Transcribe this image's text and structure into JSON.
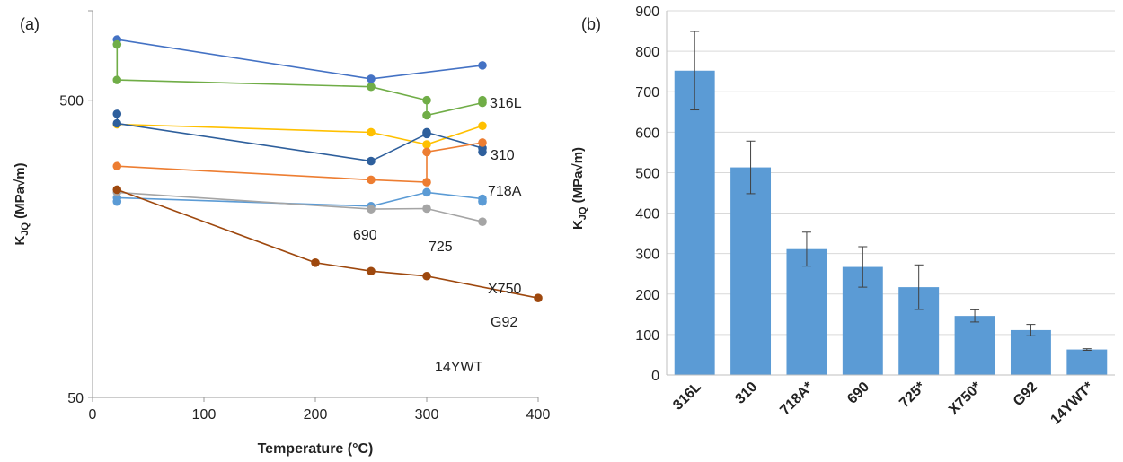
{
  "chart_data": [
    {
      "panel_label": "(a)",
      "type": "line",
      "xlabel": "Temperature (°C)",
      "ylabel_main": "K",
      "ylabel_sub": "JQ",
      "ylabel_unit": " (MPa√m)",
      "xlim": [
        0,
        400
      ],
      "ylim": [
        50,
        1000
      ],
      "yscale": "log",
      "xticks": [
        0,
        100,
        200,
        300,
        400
      ],
      "yticks": [
        50,
        500
      ],
      "grid": false,
      "series": [
        {
          "name": "316L",
          "color": "#4472c4",
          "x": [
            22,
            250,
            350
          ],
          "y": [
            800,
            590,
            655
          ]
        },
        {
          "name": "310",
          "color": "#70ad47",
          "x": [
            22,
            22,
            250,
            300,
            300,
            350,
            350
          ],
          "y": [
            770,
            585,
            555,
            500,
            445,
            490,
            500
          ]
        },
        {
          "name": "718A",
          "color": "#ffc000",
          "x": [
            22,
            250,
            300,
            350
          ],
          "y": [
            415,
            390,
            355,
            410
          ]
        },
        {
          "name": "690",
          "color": "#2e5f9c",
          "x": [
            22,
            22,
            250,
            300,
            300,
            350,
            350
          ],
          "y": [
            450,
            418,
            312,
            385,
            390,
            345,
            335
          ]
        },
        {
          "name": "725",
          "color": "#ed7d31",
          "x": [
            22,
            250,
            300,
            300,
            350
          ],
          "y": [
            300,
            270,
            265,
            335,
            360
          ]
        },
        {
          "name": "X750",
          "color": "#5b9bd5",
          "x": [
            22,
            22,
            250,
            300,
            350,
            350
          ],
          "y": [
            228,
            235,
            220,
            245,
            233,
            228
          ]
        },
        {
          "name": "G92",
          "color": "#a5a5a5",
          "x": [
            22,
            250,
            300,
            350
          ],
          "y": [
            245,
            215,
            216,
            195
          ]
        },
        {
          "name": "14YWT",
          "color": "#9e480e",
          "x": [
            22,
            200,
            250,
            300,
            400
          ],
          "y": [
            250,
            142,
            133,
            128,
            108
          ]
        }
      ],
      "annotations": [
        {
          "text": "316L"
        },
        {
          "text": "310"
        },
        {
          "text": "718A"
        },
        {
          "text": "690"
        },
        {
          "text": "725"
        },
        {
          "text": "X750"
        },
        {
          "text": "G92"
        },
        {
          "text": "14YWT"
        }
      ]
    },
    {
      "panel_label": "(b)",
      "type": "bar",
      "ylabel_main": "K",
      "ylabel_sub": "JQ",
      "ylabel_unit": " (MPa√m)",
      "ylim": [
        0,
        900
      ],
      "yticks": [
        0,
        100,
        200,
        300,
        400,
        500,
        600,
        700,
        800,
        900
      ],
      "grid": true,
      "bar_color": "#5b9bd5",
      "categories": [
        "316L",
        "310",
        "718A*",
        "690",
        "725*",
        "X750*",
        "G92",
        "14YWT*"
      ],
      "values": [
        752,
        513,
        311,
        267,
        217,
        146,
        111,
        63
      ],
      "errors": [
        97,
        65,
        42,
        50,
        55,
        15,
        14,
        2
      ]
    }
  ]
}
